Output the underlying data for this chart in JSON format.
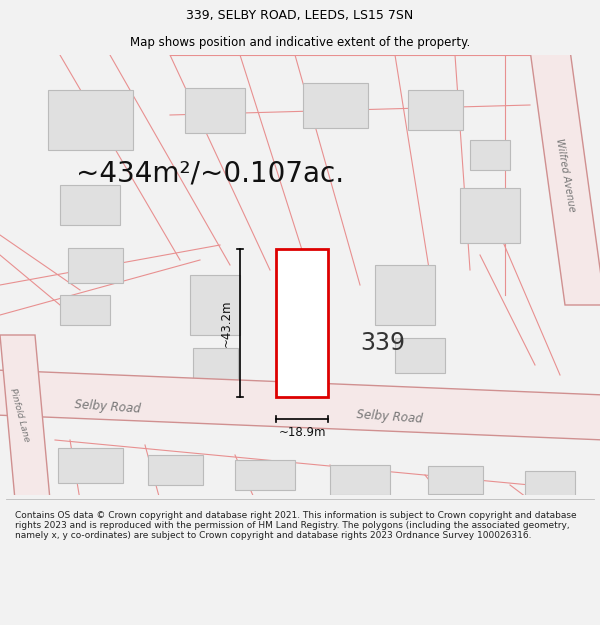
{
  "title": "339, SELBY ROAD, LEEDS, LS15 7SN",
  "subtitle": "Map shows position and indicative extent of the property.",
  "area_text": "~434m²/~0.107ac.",
  "property_number": "339",
  "dim_width": "~18.9m",
  "dim_height": "~43.2m",
  "road_label_left": "Selby Road",
  "road_label_right": "Selby Road",
  "road_label_avenue": "Wilfred Avenue",
  "road_label_lane": "Pinfold Lane",
  "copyright_text": "Contains OS data © Crown copyright and database right 2021. This information is subject to Crown copyright and database rights 2023 and is reproduced with the permission of HM Land Registry. The polygons (including the associated geometry, namely x, y co-ordinates) are subject to Crown copyright and database rights 2023 Ordnance Survey 100026316.",
  "bg_color": "#f2f2f2",
  "map_bg": "#f9f9f9",
  "road_fill": "#f5e8e8",
  "road_edge": "#d09090",
  "prop_color": "#dd0000",
  "bld_fill": "#e0e0e0",
  "bld_edge": "#bbbbbb",
  "line_color": "#e89090",
  "title_fontsize": 9,
  "area_fontsize": 20,
  "dim_fontsize": 8.5,
  "num_fontsize": 17,
  "road_label_fontsize": 8.5,
  "copy_fontsize": 6.5
}
